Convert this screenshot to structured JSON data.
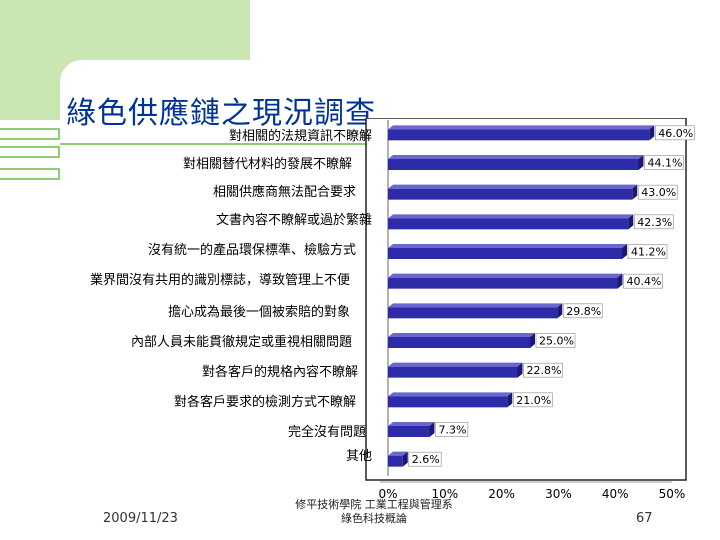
{
  "slide": {
    "title": "綠色供應鏈之現況調查",
    "date": "2009/11/23",
    "footer_line1": "修平技術學院 工業工程與管理系",
    "footer_line2": "綠色科技概論",
    "page_number": "67"
  },
  "colors": {
    "bar_fill": "#2d2ba8",
    "accent_green": "#8ccf6f",
    "title_blue": "#003399"
  },
  "chart_data": {
    "type": "bar",
    "orientation": "horizontal",
    "categories": [
      "對相關的法規資訊不瞭解",
      "對相關替代材料的發展不瞭解",
      "相關供應商無法配合要求",
      "文書內容不瞭解或過於繁雜",
      "沒有統一的產品環保標準、檢驗方式",
      "業界間沒有共用的識別標誌，導致管理上不便",
      "擔心成為最後一個被索賠的對象",
      "內部人員未能貫徹規定或重視相關問題",
      "對各客戶的規格內容不瞭解",
      "對各客戶要求的檢測方式不瞭解",
      "完全沒有問題",
      "其他"
    ],
    "values": [
      46.0,
      44.1,
      43.0,
      42.3,
      41.2,
      40.4,
      29.8,
      25.0,
      22.8,
      21.0,
      7.3,
      2.6
    ],
    "value_labels": [
      "46.0%",
      "44.1%",
      "43.0%",
      "42.3%",
      "41.2%",
      "40.4%",
      "29.8%",
      "25.0%",
      "22.8%",
      "21.0%",
      "7.3%",
      "2.6%"
    ],
    "x_ticks": [
      "0%",
      "10%",
      "20%",
      "30%",
      "40%",
      "50%"
    ],
    "xlim": [
      0,
      50
    ],
    "grid": false,
    "legend": "none"
  }
}
